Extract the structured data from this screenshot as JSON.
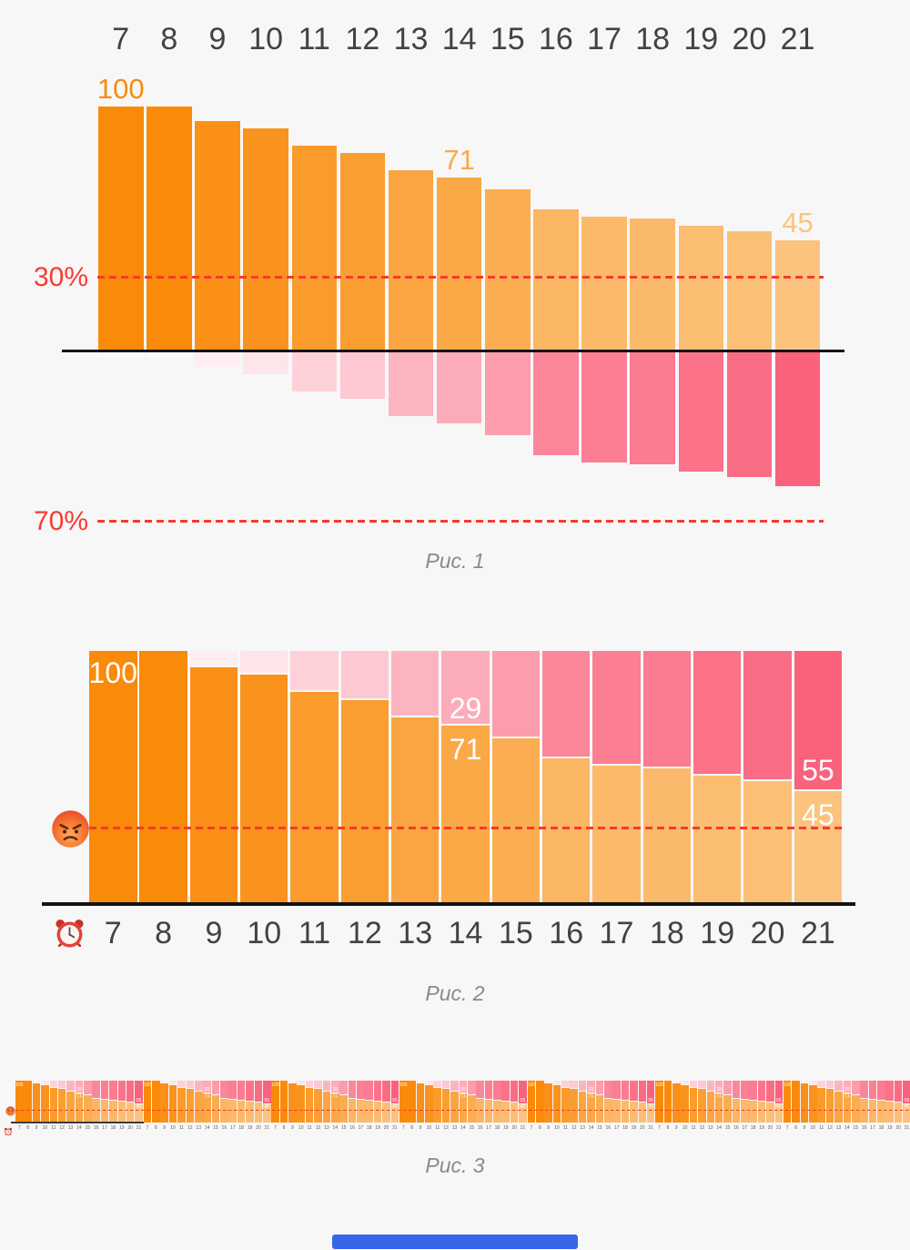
{
  "page": {
    "background_color": "#F7F7F8",
    "bottom_bar_color": "#3766EA"
  },
  "colors": {
    "orange_max": "#FA8A0A",
    "orange_min": "#FBC37E",
    "pink_max": "#FA617B",
    "pink_min": "#FFFFFF",
    "ref_red": "#FA3B30",
    "dash_red": "#FA382B",
    "axis_black": "#131313",
    "x_label_gray": "#424246",
    "caption_gray": "#8A8A8E",
    "value_label_white": "#FFFFFF"
  },
  "icons": {
    "fig2_ref_line": "angry-face",
    "fig2_x_axis": "alarm-clock",
    "fig3_ref_line": "angry-face",
    "fig3_x_axis": "alarm-clock",
    "angry_face_char": "😠",
    "alarm_clock_char": "⏰"
  },
  "chart_data": [
    {
      "id": "fig1",
      "type": "bar",
      "title": "Рис. 1",
      "x": [
        7,
        8,
        9,
        10,
        11,
        12,
        13,
        14,
        15,
        16,
        17,
        18,
        19,
        20,
        21
      ],
      "x_axis_position": "top",
      "ylim": [
        0,
        100
      ],
      "grid": false,
      "legend": null,
      "series": [
        {
          "name": "attention-remaining",
          "direction": "up",
          "values": [
            100,
            100,
            94,
            91,
            84,
            81,
            74,
            71,
            66,
            58,
            55,
            54,
            51,
            49,
            45
          ],
          "palette": [
            "#FBC37E",
            "#FA8A0A"
          ]
        },
        {
          "name": "attention-lost",
          "direction": "down",
          "values": [
            0,
            0,
            6,
            9,
            16,
            19,
            26,
            29,
            34,
            42,
            45,
            46,
            49,
            51,
            55
          ],
          "palette": [
            "#FFFFFF",
            "#FA617B"
          ]
        }
      ],
      "bar_value_labels": [
        {
          "bar": 7,
          "text": "100"
        },
        {
          "bar": 14,
          "text": "71"
        },
        {
          "bar": 21,
          "text": "45"
        }
      ],
      "ref_lines": [
        {
          "label": "30%",
          "value": 30,
          "axis": "up"
        },
        {
          "label": "70%",
          "value": 70,
          "axis": "down"
        }
      ]
    },
    {
      "id": "fig2",
      "type": "stacked-bar",
      "title": "Рис. 2",
      "x": [
        7,
        8,
        9,
        10,
        11,
        12,
        13,
        14,
        15,
        16,
        17,
        18,
        19,
        20,
        21
      ],
      "x_axis_position": "bottom",
      "x_axis_icon": "alarm-clock",
      "ylim": [
        0,
        100
      ],
      "grid": false,
      "legend": null,
      "series": [
        {
          "name": "attention-lost",
          "stack_order": "top",
          "values": [
            0,
            0,
            6,
            9,
            16,
            19,
            26,
            29,
            34,
            42,
            45,
            46,
            49,
            51,
            55
          ],
          "palette": [
            "#FFFFFF",
            "#FA617B"
          ]
        },
        {
          "name": "attention-remaining",
          "stack_order": "bottom",
          "values": [
            100,
            100,
            94,
            91,
            84,
            81,
            74,
            71,
            66,
            58,
            55,
            54,
            51,
            49,
            45
          ],
          "palette": [
            "#FBC37E",
            "#FA8A0A"
          ]
        }
      ],
      "bar_value_labels": [
        {
          "bar": 7,
          "segment": "attention-remaining",
          "text": "100"
        },
        {
          "bar": 14,
          "segment": "attention-lost",
          "text": "29"
        },
        {
          "bar": 14,
          "segment": "attention-remaining",
          "text": "71"
        },
        {
          "bar": 21,
          "segment": "attention-lost",
          "text": "55"
        },
        {
          "bar": 21,
          "segment": "attention-remaining",
          "text": "45"
        }
      ],
      "ref_lines": [
        {
          "icon": "angry-face",
          "value": 30
        }
      ]
    },
    {
      "id": "fig3",
      "type": "stacked-bar",
      "title": "Рис. 3",
      "repeat": 7,
      "x": [
        7,
        8,
        9,
        10,
        11,
        12,
        13,
        14,
        15,
        16,
        17,
        18,
        19,
        20,
        21
      ],
      "x_axis_position": "bottom",
      "x_axis_icon": "alarm-clock",
      "ylim": [
        0,
        100
      ],
      "grid": false,
      "legend": null,
      "series": [
        {
          "name": "attention-lost",
          "stack_order": "top",
          "values": [
            0,
            0,
            6,
            9,
            16,
            19,
            26,
            29,
            34,
            42,
            45,
            46,
            49,
            51,
            55
          ],
          "palette": [
            "#FFFFFF",
            "#FA617B"
          ]
        },
        {
          "name": "attention-remaining",
          "stack_order": "bottom",
          "values": [
            100,
            100,
            94,
            91,
            84,
            81,
            74,
            71,
            66,
            58,
            55,
            54,
            51,
            49,
            45
          ],
          "palette": [
            "#FBC37E",
            "#FA8A0A"
          ]
        }
      ],
      "bar_value_labels": [
        {
          "bar": 7,
          "segment": "attention-remaining",
          "text": "100"
        },
        {
          "bar": 14,
          "segment": "attention-lost",
          "text": "29"
        },
        {
          "bar": 14,
          "segment": "attention-remaining",
          "text": "71"
        },
        {
          "bar": 21,
          "segment": "attention-lost",
          "text": "55"
        },
        {
          "bar": 21,
          "segment": "attention-remaining",
          "text": "45"
        }
      ],
      "ref_lines": [
        {
          "icon": "angry-face",
          "value": 30
        }
      ]
    }
  ]
}
